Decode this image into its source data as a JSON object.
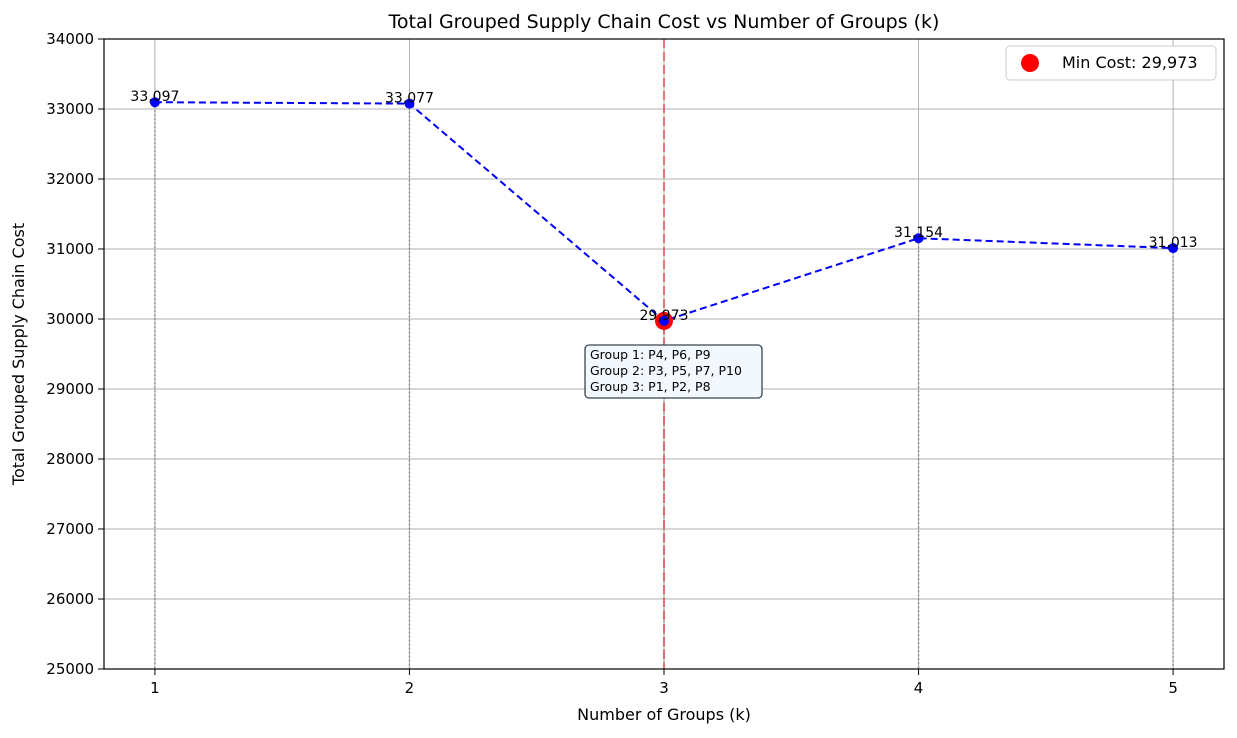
{
  "chart_data": {
    "type": "line",
    "title": "Total Grouped Supply Chain Cost vs Number of Groups (k)",
    "xlabel": "Number of Groups (k)",
    "ylabel": "Total Grouped Supply Chain Cost",
    "x": [
      1,
      2,
      3,
      4,
      5
    ],
    "y": [
      33097,
      33077,
      29973,
      31154,
      31013
    ],
    "point_labels": [
      "33,097",
      "33,077",
      "29,973",
      "31,154",
      "31,013"
    ],
    "xlim": [
      0.8,
      5.2
    ],
    "ylim": [
      25000,
      34000
    ],
    "xticks": [
      1,
      2,
      3,
      4,
      5
    ],
    "yticks": [
      25000,
      26000,
      27000,
      28000,
      29000,
      30000,
      31000,
      32000,
      33000,
      34000
    ],
    "grid": true,
    "line_style": "dashed",
    "line_color": "#0000ff",
    "min_point": {
      "x": 3,
      "y": 29973,
      "color": "#ff0000",
      "legend": "Min Cost: 29,973"
    },
    "min_marker_line_color": "#e8434a",
    "annotation": {
      "lines": [
        "Group 1: P4, P6, P9",
        "Group 2: P3, P5, P7, P10",
        "Group 3: P1, P2, P8"
      ]
    },
    "legend_position": "top-right"
  }
}
